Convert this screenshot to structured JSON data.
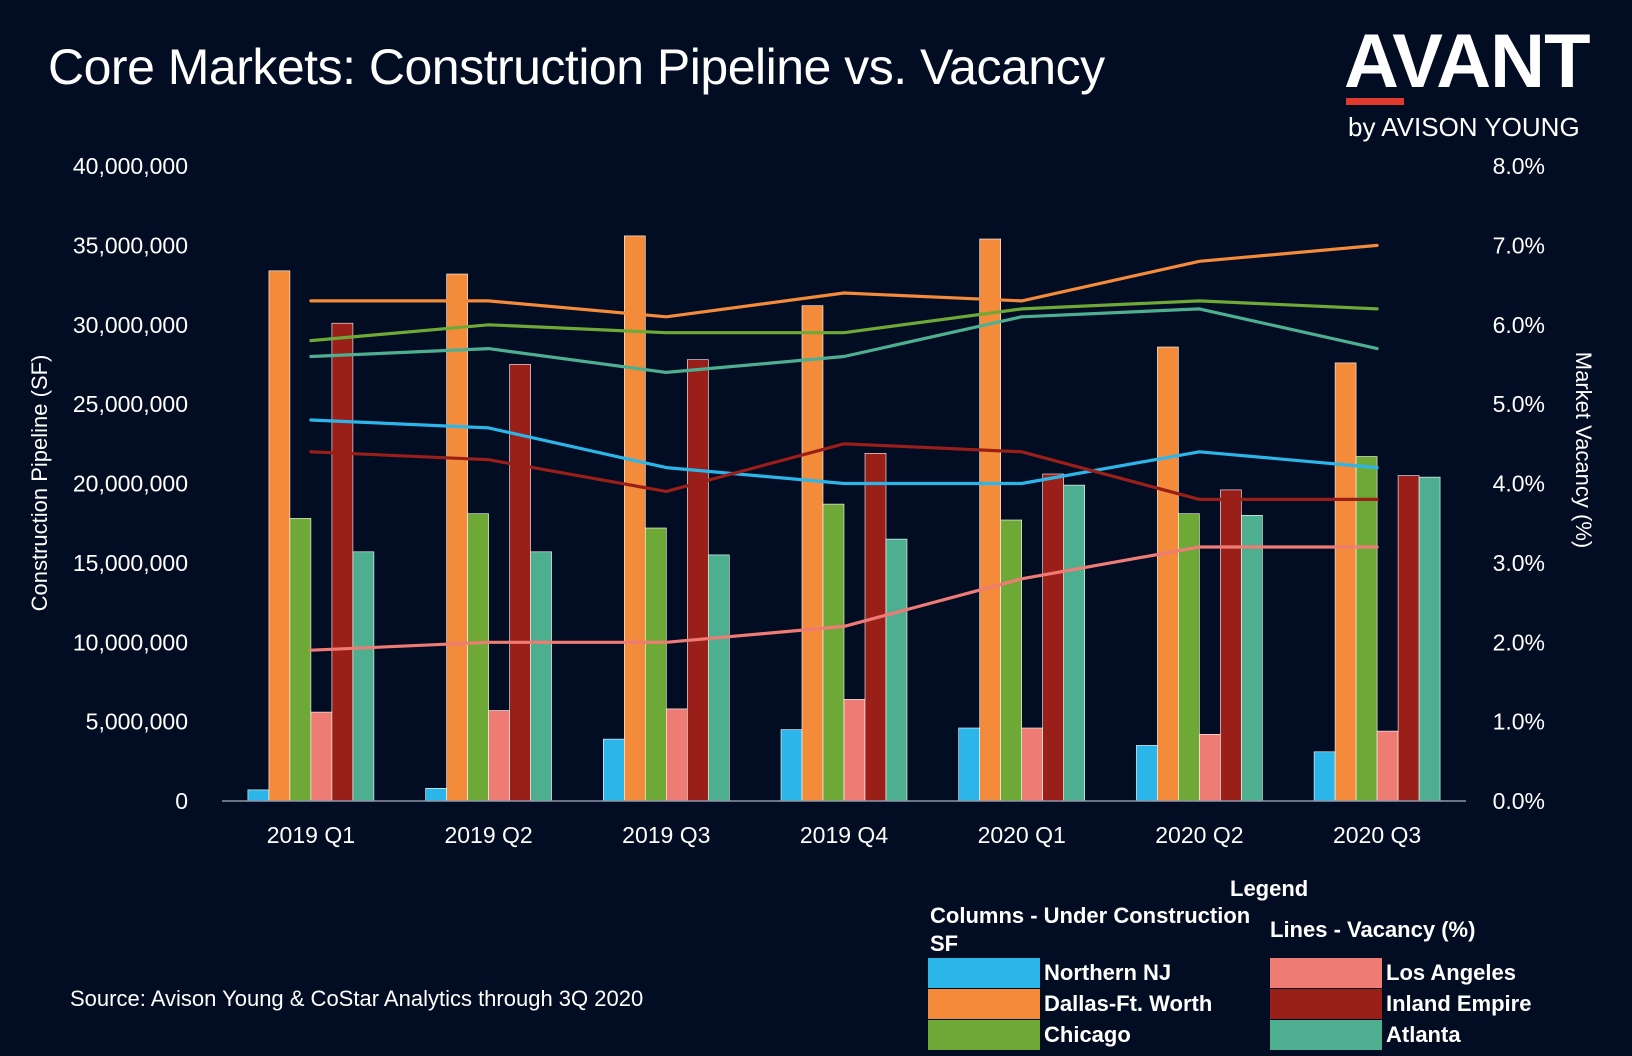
{
  "header": {
    "title": "Core Markets: Construction Pipeline vs. Vacancy",
    "logo_main": "AVANT",
    "logo_sub": "by AVISON YOUNG"
  },
  "source": "Source: Avison Young & CoStar Analytics through 3Q 2020",
  "legend": {
    "title": "Legend",
    "columns_heading": "Columns - Under Construction SF",
    "lines_heading": "Lines - Vacancy (%)"
  },
  "chart_data": {
    "type": "bar",
    "categories": [
      "2019 Q1",
      "2019 Q2",
      "2019 Q3",
      "2019 Q4",
      "2020 Q1",
      "2020 Q2",
      "2020 Q3"
    ],
    "ylabel": "Construction Pipeline (SF)",
    "ylabel_right": "Market Vacancy (%)",
    "ylim": [
      0,
      40000000
    ],
    "ylim_right": [
      0,
      8.0
    ],
    "yticks": [
      "0",
      "5,000,000",
      "10,000,000",
      "15,000,000",
      "20,000,000",
      "25,000,000",
      "30,000,000",
      "35,000,000",
      "40,000,000"
    ],
    "yticks_right": [
      "0.0%",
      "1.0%",
      "2.0%",
      "3.0%",
      "4.0%",
      "5.0%",
      "6.0%",
      "7.0%",
      "8.0%"
    ],
    "grid": false,
    "legend_position": "bottom-right",
    "series": [
      {
        "name": "Northern NJ",
        "color": "#2cb5e8",
        "values": [
          700000,
          800000,
          3900000,
          4500000,
          4600000,
          3500000,
          3100000
        ],
        "vacancy": [
          4.8,
          4.7,
          4.2,
          4.0,
          4.0,
          4.4,
          4.2
        ]
      },
      {
        "name": "Dallas-Ft. Worth",
        "color": "#f38b3a",
        "values": [
          33400000,
          33200000,
          35600000,
          31200000,
          35400000,
          28600000,
          27600000
        ],
        "vacancy": [
          6.3,
          6.3,
          6.1,
          6.4,
          6.3,
          6.8,
          7.0
        ]
      },
      {
        "name": "Chicago",
        "color": "#6ea938",
        "values": [
          17800000,
          18100000,
          17200000,
          18700000,
          17700000,
          18100000,
          21700000
        ],
        "vacancy": [
          5.8,
          6.0,
          5.9,
          5.9,
          6.2,
          6.3,
          6.2
        ]
      },
      {
        "name": "Los Angeles",
        "color": "#ee7c74",
        "values": [
          5600000,
          5700000,
          5800000,
          6400000,
          4600000,
          4200000,
          4400000
        ],
        "vacancy": [
          1.9,
          2.0,
          2.0,
          2.2,
          2.8,
          3.2,
          3.2
        ]
      },
      {
        "name": "Inland Empire",
        "color": "#9a1f19",
        "values": [
          30100000,
          27500000,
          27800000,
          21900000,
          20600000,
          19600000,
          20500000
        ],
        "vacancy": [
          4.4,
          4.3,
          3.9,
          4.5,
          4.4,
          3.8,
          3.8
        ]
      },
      {
        "name": "Atlanta",
        "color": "#4daf90",
        "values": [
          15700000,
          15700000,
          15500000,
          16500000,
          19900000,
          18000000,
          20400000
        ],
        "vacancy": [
          5.6,
          5.7,
          5.4,
          5.6,
          6.1,
          6.2,
          5.7
        ]
      }
    ]
  }
}
